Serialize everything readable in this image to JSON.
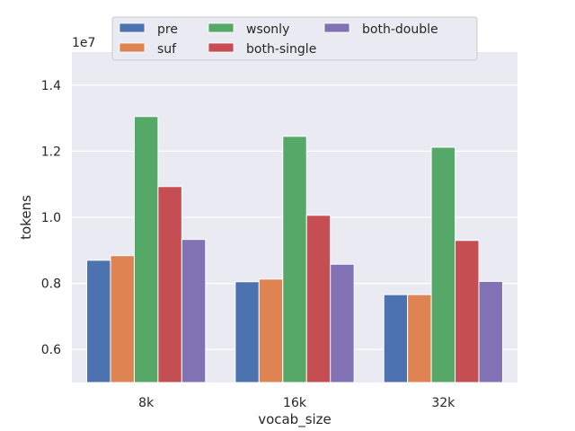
{
  "chart_data": {
    "type": "bar",
    "title": "",
    "xlabel": "vocab_size",
    "ylabel": "tokens",
    "offset_label": "1e7",
    "categories": [
      "8k",
      "16k",
      "32k"
    ],
    "ylim": [
      0.5,
      1.5
    ],
    "yticks": [
      "0.6",
      "0.8",
      "1.0",
      "1.2",
      "1.4"
    ],
    "ytick_values": [
      0.6,
      0.8,
      1.0,
      1.2,
      1.4
    ],
    "grid": true,
    "legend_position": "top-center",
    "series": [
      {
        "name": "pre",
        "color": "#4c72b0",
        "values": [
          0.87,
          0.805,
          0.766
        ]
      },
      {
        "name": "suf",
        "color": "#dd8452",
        "values": [
          0.884,
          0.813,
          0.766
        ]
      },
      {
        "name": "wsonly",
        "color": "#55a868",
        "values": [
          1.305,
          1.245,
          1.212
        ]
      },
      {
        "name": "both-single",
        "color": "#c44e52",
        "values": [
          1.093,
          1.006,
          0.93
        ]
      },
      {
        "name": "both-double",
        "color": "#8172b3",
        "values": [
          0.933,
          0.858,
          0.806
        ]
      }
    ]
  }
}
